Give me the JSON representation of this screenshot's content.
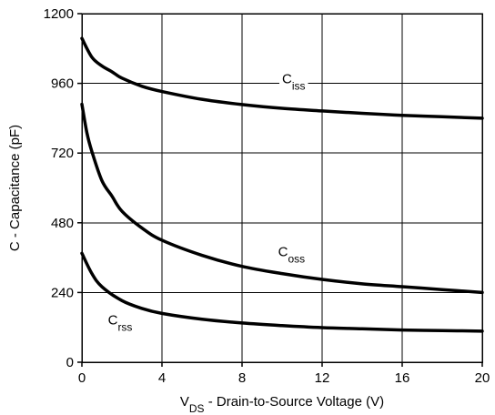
{
  "chart_data": {
    "type": "line",
    "title": "",
    "xlabel": {
      "prefix": "V",
      "subscript": "DS",
      "suffix": " - Drain-to-Source Voltage (V)"
    },
    "ylabel": "C - Capacitance (pF)",
    "xlim": [
      0,
      20
    ],
    "ylim": [
      0,
      1200
    ],
    "xticks": [
      0,
      4,
      8,
      12,
      16,
      20
    ],
    "xtick_labels": [
      "0",
      "4",
      "8",
      "12",
      "16",
      "20"
    ],
    "yticks": [
      0,
      240,
      480,
      720,
      960,
      1200
    ],
    "ytick_labels": [
      "0",
      "240",
      "480",
      "720",
      "960",
      "1200"
    ],
    "grid": true,
    "series": [
      {
        "name": "Ciss",
        "label_main": "C",
        "label_sub": "iss",
        "label_at": [
          10,
          960
        ],
        "x": [
          0,
          0.5,
          1,
          1.5,
          2,
          3,
          4,
          6,
          8,
          10,
          12,
          14,
          16,
          18,
          20
        ],
        "y": [
          1115,
          1050,
          1020,
          1000,
          978,
          950,
          932,
          905,
          887,
          874,
          865,
          857,
          850,
          845,
          840
        ]
      },
      {
        "name": "Coss",
        "label_main": "C",
        "label_sub": "oss",
        "label_at": [
          9.8,
          365
        ],
        "x": [
          0,
          0.25,
          0.5,
          1,
          1.5,
          2,
          3,
          4,
          6,
          8,
          10,
          12,
          14,
          16,
          18,
          20
        ],
        "y": [
          888,
          790,
          725,
          625,
          572,
          520,
          462,
          420,
          368,
          330,
          305,
          285,
          270,
          260,
          250,
          240
        ]
      },
      {
        "name": "Crss",
        "label_main": "C",
        "label_sub": "rss",
        "label_at": [
          1.3,
          130
        ],
        "x": [
          0,
          0.5,
          1,
          2,
          3,
          4,
          6,
          8,
          10,
          12,
          14,
          16,
          18,
          20
        ],
        "y": [
          375,
          305,
          260,
          212,
          185,
          168,
          148,
          135,
          126,
          119,
          115,
          111,
          109,
          107
        ]
      }
    ]
  }
}
